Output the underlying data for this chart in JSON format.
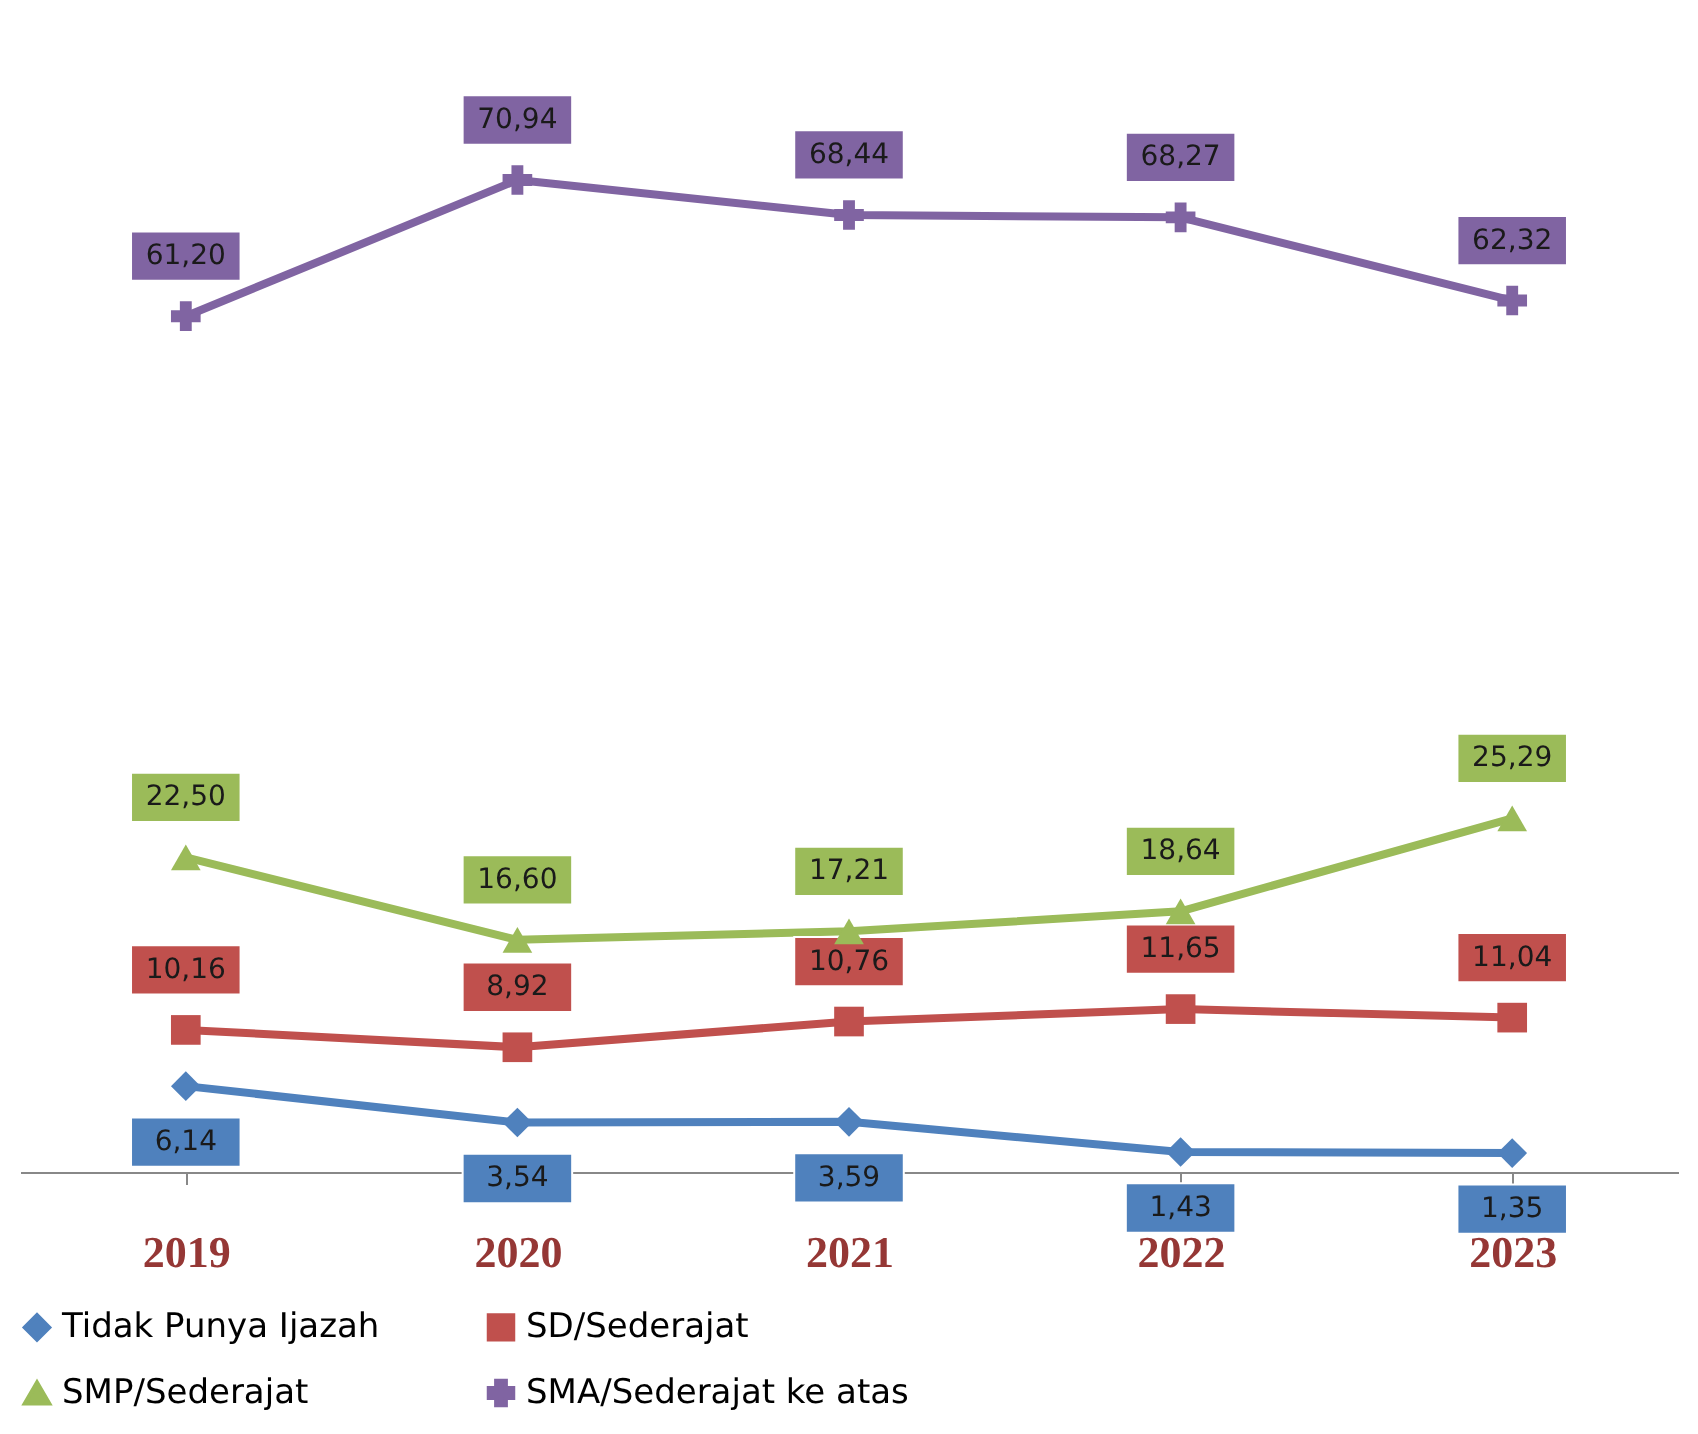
{
  "chart_data": {
    "type": "line",
    "categories": [
      "2019",
      "2020",
      "2021",
      "2022",
      "2023"
    ],
    "series": [
      {
        "name": "Tidak Punya Ijazah",
        "color": "#4f81bd",
        "marker": "diamond",
        "values": [
          6.14,
          3.54,
          3.59,
          1.43,
          1.35
        ],
        "value_labels": [
          "6,14",
          "3,54",
          "3,59",
          "1,43",
          "1,35"
        ]
      },
      {
        "name": "SD/Sederajat",
        "color": "#c0504d",
        "marker": "square",
        "values": [
          10.16,
          8.92,
          10.76,
          11.65,
          11.04
        ],
        "value_labels": [
          "10,16",
          "8,92",
          "10,76",
          "11,65",
          "11,04"
        ]
      },
      {
        "name": "SMP/Sederajat",
        "color": "#9bbb59",
        "marker": "triangle",
        "values": [
          22.5,
          16.6,
          17.21,
          18.64,
          25.29
        ],
        "value_labels": [
          "22,50",
          "16,60",
          "17,21",
          "18,64",
          "25,29"
        ]
      },
      {
        "name": "SMA/Sederajat ke atas",
        "color": "#8064a2",
        "marker": "cross",
        "values": [
          61.2,
          70.94,
          68.44,
          68.27,
          62.32
        ],
        "value_labels": [
          "61,20",
          "70,94",
          "68,44",
          "68,27",
          "62,32"
        ]
      }
    ],
    "legend": "bottom",
    "grid": false,
    "line_style": "solid",
    "tick_labels": "x"
  }
}
